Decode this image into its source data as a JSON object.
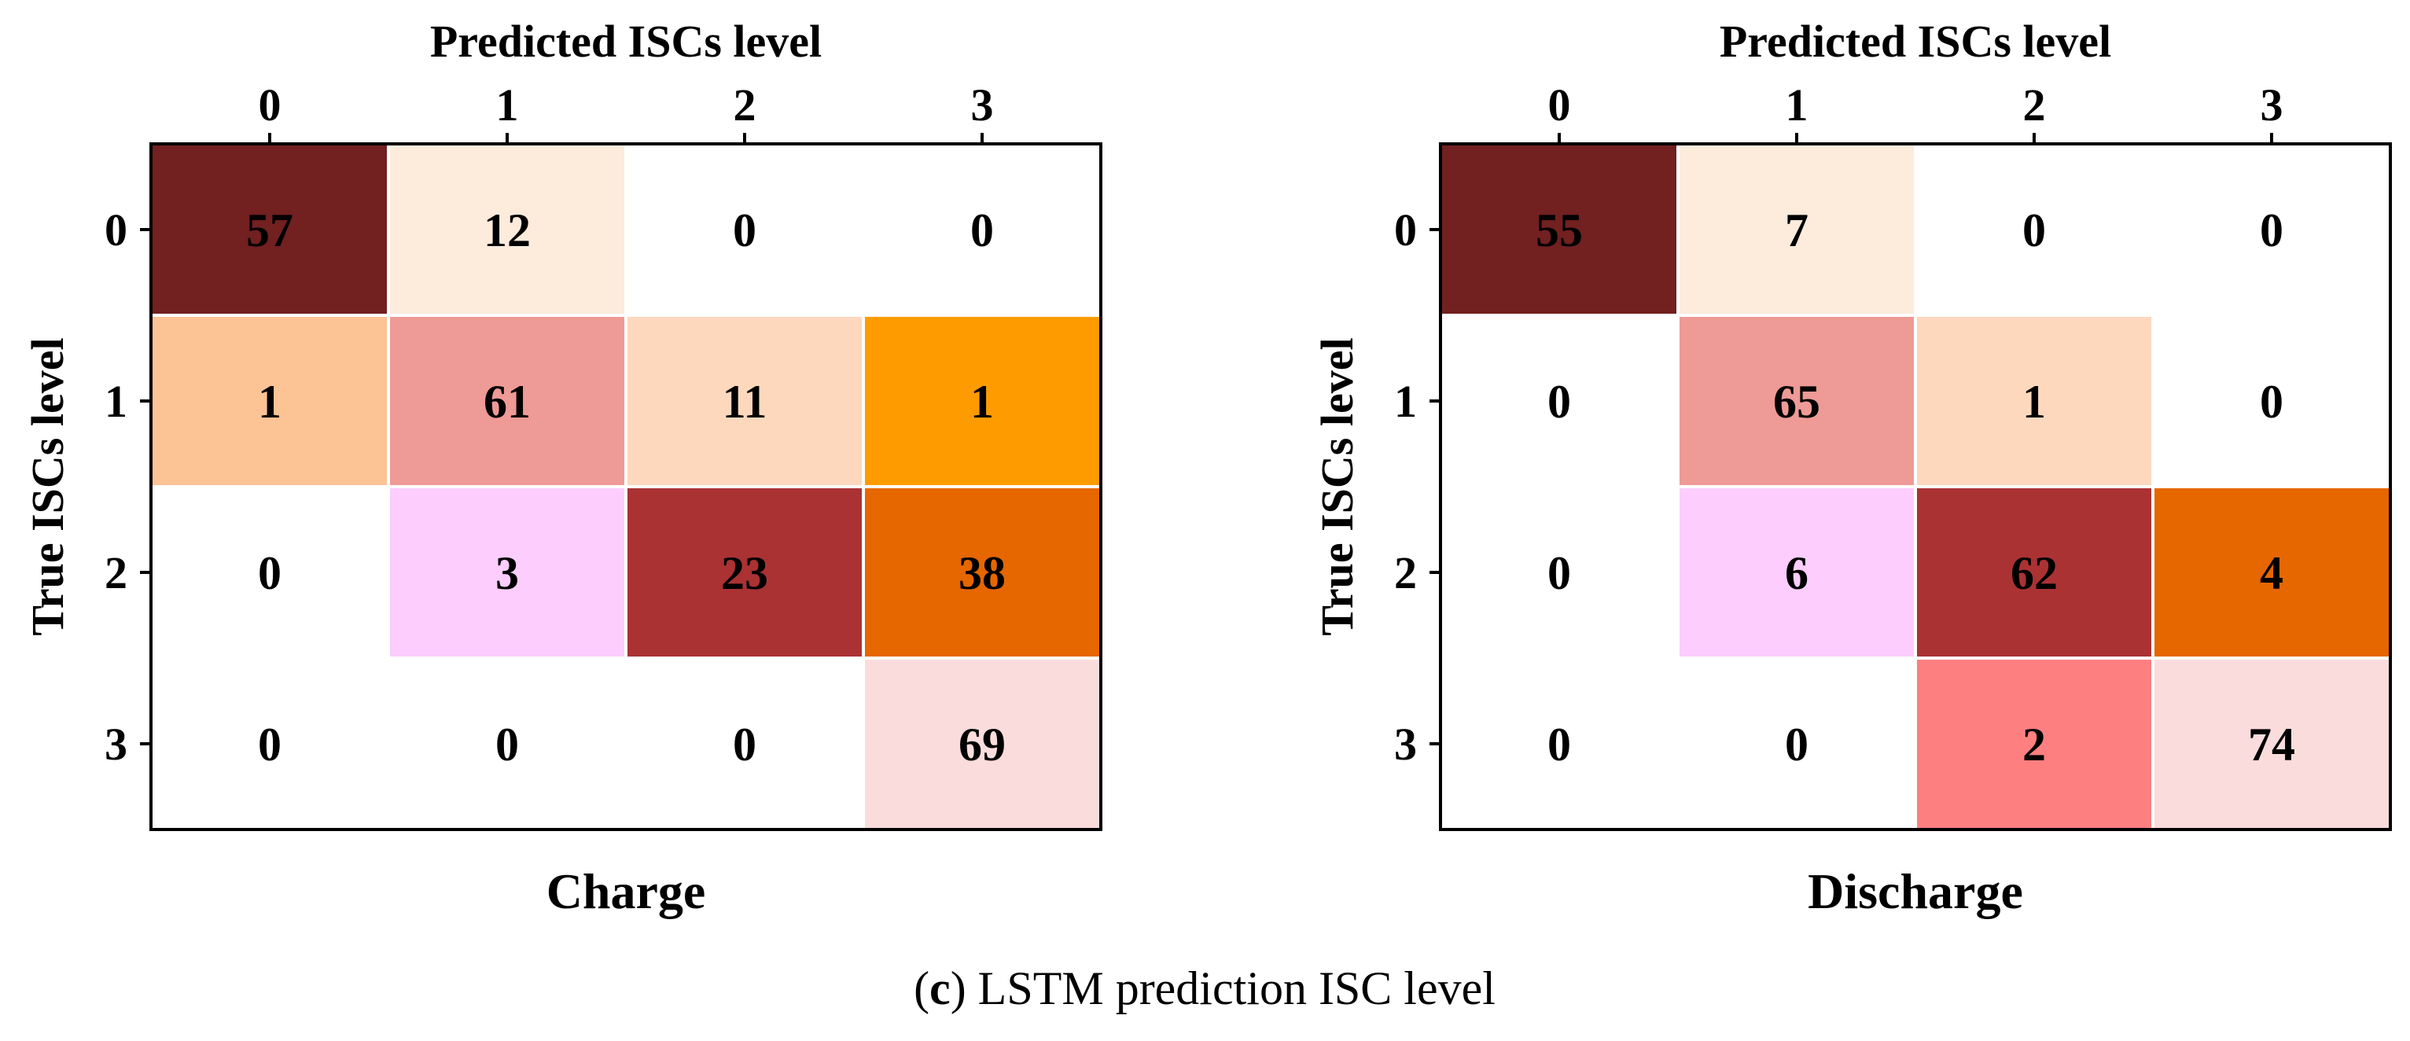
{
  "caption": {
    "prefix": "(",
    "letter": "c",
    "suffix": ") LSTM prediction ISC level"
  },
  "chart_data": [
    {
      "type": "heatmap",
      "title": "Predicted ISCs level",
      "xlabel": "Charge",
      "ylabel": "True ISCs level",
      "x_categories": [
        "0",
        "1",
        "2",
        "3"
      ],
      "y_categories": [
        "0",
        "1",
        "2",
        "3"
      ],
      "values": [
        [
          57,
          12,
          0,
          0
        ],
        [
          1,
          61,
          11,
          1
        ],
        [
          0,
          3,
          23,
          38
        ],
        [
          0,
          0,
          0,
          69
        ]
      ],
      "cell_colors": [
        [
          "#722020",
          "#fdebdc",
          "#ffffff",
          "#ffffff"
        ],
        [
          "#fcc395",
          "#ee9a96",
          "#fdd8bd",
          "#fe9b00"
        ],
        [
          "#ffffff",
          "#fccdfd",
          "#aa3233",
          "#e66600"
        ],
        [
          "#ffffff",
          "#ffffff",
          "#ffffff",
          "#fadcdc"
        ]
      ]
    },
    {
      "type": "heatmap",
      "title": "Predicted ISCs level",
      "xlabel": "Discharge",
      "ylabel": "True ISCs level",
      "x_categories": [
        "0",
        "1",
        "2",
        "3"
      ],
      "y_categories": [
        "0",
        "1",
        "2",
        "3"
      ],
      "values": [
        [
          55,
          7,
          0,
          0
        ],
        [
          0,
          65,
          1,
          0
        ],
        [
          0,
          6,
          62,
          4
        ],
        [
          0,
          0,
          2,
          74
        ]
      ],
      "cell_colors": [
        [
          "#722020",
          "#fdebdc",
          "#ffffff",
          "#ffffff"
        ],
        [
          "#ffffff",
          "#ee9a96",
          "#fdd8bd",
          "#ffffff"
        ],
        [
          "#ffffff",
          "#fccdfd",
          "#aa3233",
          "#e66600"
        ],
        [
          "#ffffff",
          "#ffffff",
          "#fe7f80",
          "#fadcdc"
        ]
      ]
    }
  ]
}
